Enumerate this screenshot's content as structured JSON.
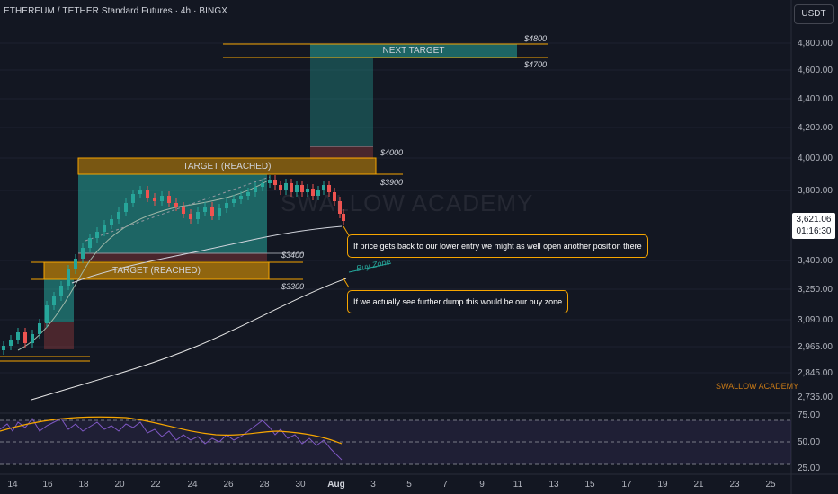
{
  "header": {
    "title": "ETHEREUM / TETHER Standard Futures · 4h · BINGX",
    "currency_button": "USDT"
  },
  "price_scale": {
    "ticks": [
      "4,800.00",
      "4,600.00",
      "4,400.00",
      "4,200.00",
      "4,000.00",
      "3,800.00",
      "3,400.00",
      "3,250.00",
      "3,090.00",
      "2,965.00",
      "2,845.00",
      "2,735.00"
    ],
    "current_price": "3,621.06",
    "countdown": "01:16:30"
  },
  "rsi_scale": {
    "ticks": [
      "75.00",
      "50.00",
      "25.00"
    ]
  },
  "time_axis": {
    "ticks": [
      "14",
      "16",
      "18",
      "20",
      "22",
      "24",
      "26",
      "28",
      "30",
      "Aug",
      "3",
      "5",
      "7",
      "9",
      "11",
      "13",
      "15",
      "17",
      "19",
      "21",
      "23",
      "25"
    ]
  },
  "annotations": {
    "next_target": "NEXT TARGET",
    "target_reached_1": "TARGET (REACHED)",
    "target_reached_2": "TARGET (REACHED)",
    "price_4800": "$4800",
    "price_4700": "$4700",
    "price_4000": "$4000",
    "price_3900": "$3900",
    "price_3400": "$3400",
    "price_3300": "$3300",
    "note_1": "If price gets back to our lower entry we might as well open another position there",
    "note_2": "If we actually see further dump this would be our buy zone",
    "buy_zone": "Buy Zone",
    "watermark": "SWALLOW ACADEMY",
    "watermark_small": "SWALLOW ACADEMY"
  },
  "colors": {
    "background": "#131722",
    "up_candle": "#26a69a",
    "down_candle": "#ef5350",
    "target_zone": "#f7a600",
    "profit_zone": "#26a69a",
    "loss_zone": "#ef5350",
    "rsi_line": "#7e57c2",
    "rsi_ma": "#f7a600"
  }
}
